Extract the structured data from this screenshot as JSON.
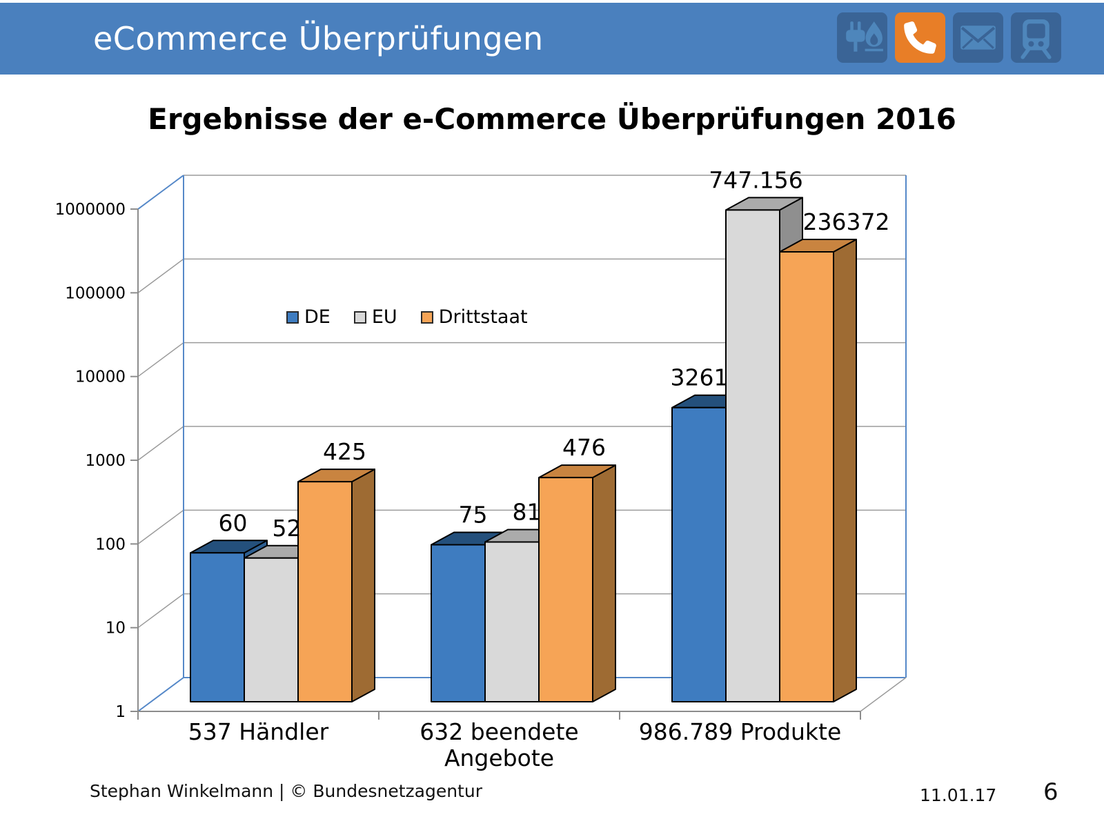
{
  "header": {
    "title": "eCommerce Überprüfungen",
    "icons": [
      {
        "name": "energy-icon",
        "active": false
      },
      {
        "name": "phone-icon",
        "active": true
      },
      {
        "name": "mail-icon",
        "active": false
      },
      {
        "name": "train-icon",
        "active": false
      }
    ],
    "colors": {
      "bar_background": "#4A80BE",
      "icon_tile": "#3A6496",
      "icon_glyph": "#4E86BB",
      "active_tile": "#E87E27",
      "active_glyph": "#FFFFFF"
    }
  },
  "chart_data": {
    "type": "bar",
    "projection": "3d",
    "title": "Ergebnisse der e-Commerce Überprüfungen 2016",
    "categories": [
      "537 Händler",
      "632 beendete Angebote",
      "986.789 Produkte"
    ],
    "category_label_lines": [
      [
        "537 Händler"
      ],
      [
        "632 beendete",
        "Angebote"
      ],
      [
        "986.789 Produkte"
      ]
    ],
    "series": [
      {
        "name": "DE",
        "values": [
          60,
          75,
          3261
        ],
        "value_labels": [
          "60",
          "75",
          "3261"
        ],
        "color_front": "#3E7CC0",
        "color_top": "#24507C",
        "color_side": "#2D5E90"
      },
      {
        "name": "EU",
        "values": [
          52,
          81,
          747156
        ],
        "value_labels": [
          "52",
          "81",
          "747.156"
        ],
        "color_front": "#D9D9D9",
        "color_top": "#ABABAB",
        "color_side": "#8F8F8F"
      },
      {
        "name": "Drittstaat",
        "values": [
          425,
          476,
          236372
        ],
        "value_labels": [
          "425",
          "476",
          "236372"
        ],
        "color_front": "#F6A456",
        "color_top": "#C98440",
        "color_side": "#9E6B33"
      }
    ],
    "y_axis": {
      "scale": "log",
      "min": 1,
      "max": 1000000,
      "tick_labels": [
        "1",
        "10",
        "100",
        "1000",
        "10000",
        "100000",
        "1000000"
      ]
    },
    "legend": {
      "entries": [
        "DE",
        "EU",
        "Drittstaat"
      ],
      "position": "inside top-left"
    },
    "grid": true,
    "frame_color": "#5588C8",
    "gridline_color": "#9B9B9B",
    "axis_color": "#8C8C8C"
  },
  "footer": {
    "author_line": "Stephan Winkelmann | © Bundesnetzagentur",
    "date": "11.01.17",
    "page_number": "6"
  }
}
